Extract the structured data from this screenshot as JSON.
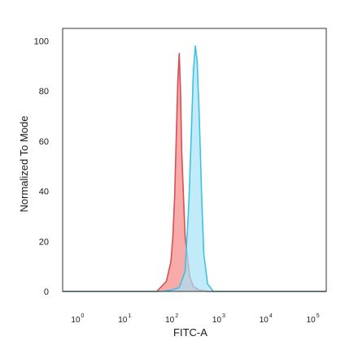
{
  "chart_data": {
    "type": "area",
    "title": "",
    "xlabel": "FITC-A",
    "ylabel": "Normalized To Mode",
    "x_scale": "log",
    "xlim": [
      0.5,
      200000
    ],
    "ylim": [
      0,
      105
    ],
    "yticks": [
      "0",
      "20",
      "40",
      "60",
      "80",
      "100"
    ],
    "xticks": [
      {
        "base": "10",
        "exp": "0",
        "value": 1
      },
      {
        "base": "10",
        "exp": "1",
        "value": 10
      },
      {
        "base": "10",
        "exp": "2",
        "value": 100
      },
      {
        "base": "10",
        "exp": "3",
        "value": 1000
      },
      {
        "base": "10",
        "exp": "4",
        "value": 10000
      },
      {
        "base": "10",
        "exp": "5",
        "value": 100000
      }
    ],
    "grid": false,
    "series": [
      {
        "color_fill": "#f7a2a0",
        "color_line": "#d94f57",
        "x": [
          0.5,
          50,
          80,
          100,
          110,
          120,
          130,
          140,
          150,
          160,
          170,
          200,
          250,
          300,
          400,
          600,
          200000
        ],
        "y": [
          0,
          0,
          4,
          12,
          22,
          38,
          62,
          84,
          95,
          80,
          55,
          22,
          6,
          2,
          0.5,
          0,
          0
        ]
      },
      {
        "color_fill": "#a8e2f7",
        "color_line": "#3ec2e3",
        "x": [
          0.5,
          60,
          100,
          150,
          200,
          240,
          270,
          300,
          330,
          360,
          400,
          450,
          500,
          600,
          800,
          200000
        ],
        "y": [
          0,
          0,
          0.5,
          1.5,
          8,
          35,
          62,
          88,
          98,
          92,
          70,
          38,
          15,
          3,
          0,
          0
        ]
      }
    ]
  }
}
